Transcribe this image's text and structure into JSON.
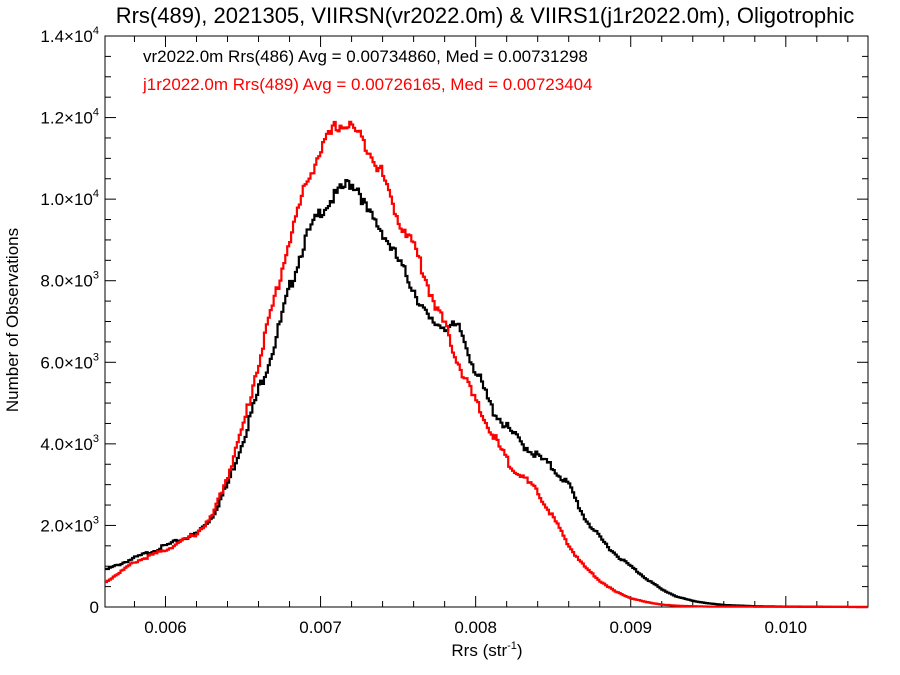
{
  "chart_data": {
    "type": "line",
    "title": "Rrs(489), 2021305, VIIRSN(vr2022.0m) & VIIRS1(j1r2022.0m), Oligotrophic",
    "xlabel": "Rrs (str",
    "xlabel_sup": "-1",
    "xlabel_close": ")",
    "ylabel": "Number of Observations",
    "xlim": [
      0.00561,
      0.01053
    ],
    "ylim": [
      0,
      14000
    ],
    "x_ticks": [
      {
        "v": 0.006,
        "label": "0.006"
      },
      {
        "v": 0.007,
        "label": "0.007"
      },
      {
        "v": 0.008,
        "label": "0.008"
      },
      {
        "v": 0.009,
        "label": "0.009"
      },
      {
        "v": 0.01,
        "label": "0.010"
      }
    ],
    "y_ticks": [
      {
        "v": 0,
        "base": "0",
        "exp": ""
      },
      {
        "v": 2000,
        "base": "2.0×10",
        "exp": "3"
      },
      {
        "v": 4000,
        "base": "4.0×10",
        "exp": "3"
      },
      {
        "v": 6000,
        "base": "6.0×10",
        "exp": "3"
      },
      {
        "v": 8000,
        "base": "8.0×10",
        "exp": "3"
      },
      {
        "v": 10000,
        "base": "1.0×10",
        "exp": "4"
      },
      {
        "v": 12000,
        "base": "1.2×10",
        "exp": "4"
      },
      {
        "v": 14000,
        "base": "1.4×10",
        "exp": "4"
      }
    ],
    "grid": false,
    "legend_position": "top-left",
    "series": [
      {
        "name": "vr2022.0m Rrs(486)",
        "label": "vr2022.0m Rrs(486) Avg = 0.00734860, Med = 0.00731298",
        "color": "#000000",
        "points": [
          [
            0.00561,
            900
          ],
          [
            0.0058,
            1200
          ],
          [
            0.006,
            1500
          ],
          [
            0.0062,
            1800
          ],
          [
            0.0063,
            2200
          ],
          [
            0.0064,
            3000
          ],
          [
            0.0065,
            4100
          ],
          [
            0.0066,
            5300
          ],
          [
            0.0067,
            6400
          ],
          [
            0.0068,
            7800
          ],
          [
            0.0069,
            9000
          ],
          [
            0.007,
            9700
          ],
          [
            0.0071,
            10100
          ],
          [
            0.00718,
            10400
          ],
          [
            0.00724,
            10300
          ],
          [
            0.0073,
            9700
          ],
          [
            0.0074,
            9200
          ],
          [
            0.0075,
            8500
          ],
          [
            0.0076,
            7800
          ],
          [
            0.0077,
            7000
          ],
          [
            0.0078,
            6900
          ],
          [
            0.0079,
            6800
          ],
          [
            0.008,
            5800
          ],
          [
            0.0081,
            4900
          ],
          [
            0.0082,
            4400
          ],
          [
            0.0083,
            4000
          ],
          [
            0.0084,
            3700
          ],
          [
            0.0085,
            3400
          ],
          [
            0.0086,
            3000
          ],
          [
            0.0087,
            2200
          ],
          [
            0.0088,
            1700
          ],
          [
            0.0089,
            1300
          ],
          [
            0.009,
            1000
          ],
          [
            0.0091,
            700
          ],
          [
            0.0092,
            430
          ],
          [
            0.0093,
            250
          ],
          [
            0.0094,
            150
          ],
          [
            0.0095,
            90
          ],
          [
            0.0096,
            50
          ],
          [
            0.0098,
            20
          ],
          [
            0.01,
            10
          ],
          [
            0.0105,
            0
          ]
        ]
      },
      {
        "name": "j1r2022.0m Rrs(489)",
        "label": "j1r2022.0m Rrs(489) Avg = 0.00726165, Med = 0.00723404",
        "color": "#ff0000",
        "points": [
          [
            0.00561,
            600
          ],
          [
            0.0058,
            1100
          ],
          [
            0.006,
            1400
          ],
          [
            0.0062,
            1800
          ],
          [
            0.0063,
            2200
          ],
          [
            0.0064,
            3200
          ],
          [
            0.0065,
            4400
          ],
          [
            0.0066,
            6000
          ],
          [
            0.0067,
            7500
          ],
          [
            0.0068,
            9000
          ],
          [
            0.0069,
            10300
          ],
          [
            0.007,
            11200
          ],
          [
            0.0071,
            11800
          ],
          [
            0.0072,
            11800
          ],
          [
            0.0073,
            11300
          ],
          [
            0.0074,
            10600
          ],
          [
            0.0075,
            9500
          ],
          [
            0.0076,
            8900
          ],
          [
            0.0077,
            7800
          ],
          [
            0.0078,
            6900
          ],
          [
            0.0079,
            5900
          ],
          [
            0.008,
            5000
          ],
          [
            0.0081,
            4300
          ],
          [
            0.0082,
            3600
          ],
          [
            0.0083,
            3200
          ],
          [
            0.0084,
            2800
          ],
          [
            0.0085,
            2200
          ],
          [
            0.0086,
            1500
          ],
          [
            0.0087,
            1000
          ],
          [
            0.0088,
            650
          ],
          [
            0.0089,
            380
          ],
          [
            0.009,
            220
          ],
          [
            0.0091,
            120
          ],
          [
            0.0092,
            60
          ],
          [
            0.0093,
            30
          ],
          [
            0.0095,
            10
          ],
          [
            0.01,
            5
          ],
          [
            0.0105,
            0
          ]
        ]
      }
    ]
  }
}
